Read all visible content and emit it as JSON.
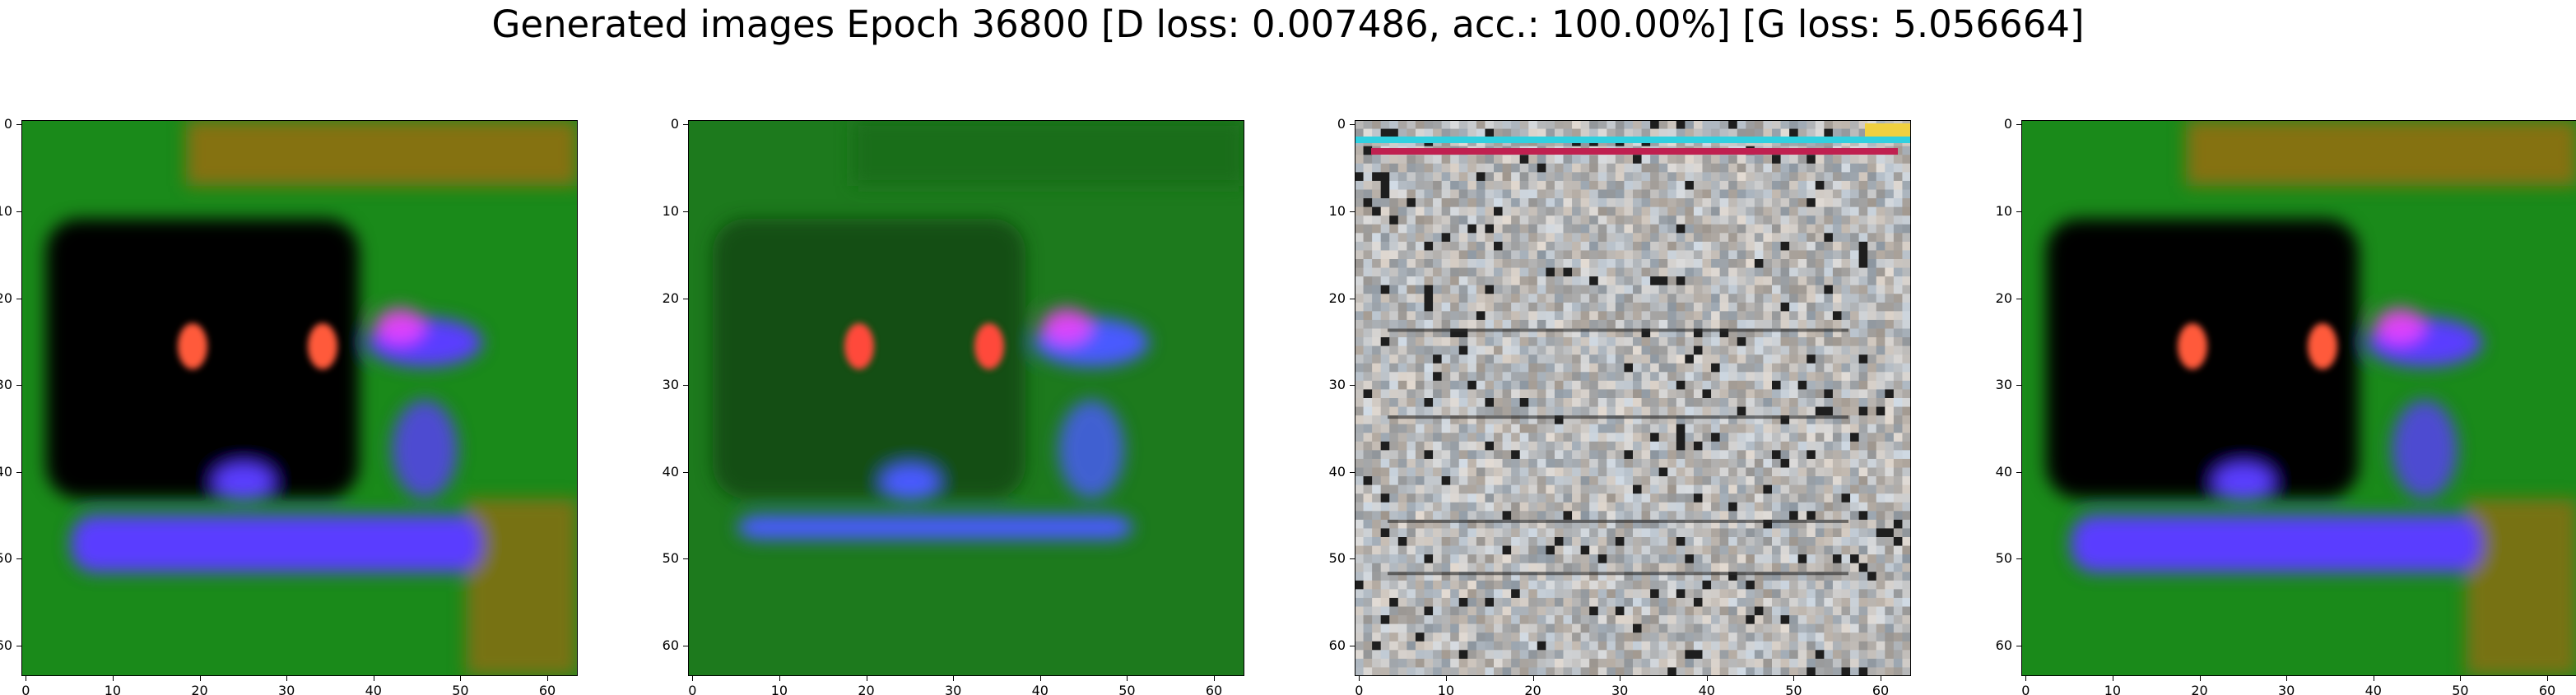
{
  "figure": {
    "title": "Generated images Epoch 36800 [D loss: 0.007486, acc.: 100.00%] [G loss: 5.056664]"
  },
  "axes": {
    "x_ticks": [
      0,
      10,
      20,
      30,
      40,
      50,
      60
    ],
    "y_ticks": [
      0,
      10,
      20,
      30,
      40,
      50,
      60
    ],
    "xlim": [
      -0.5,
      63.5
    ],
    "ylim": [
      63.5,
      -0.5
    ]
  },
  "panels": [
    {
      "name": "generated-image-1",
      "content": "dark-scene-with-two-red-eyes-blue-streaks-green-background",
      "colors": {
        "background": "#1a8a1a",
        "dark": "#050505",
        "eye": "#ff5a3a",
        "streak": "#5a3cff",
        "top": "#a06a10"
      }
    },
    {
      "name": "generated-image-2",
      "content": "green-blurred-scene-with-two-red-eyes-blue-streak",
      "colors": {
        "background": "#1d7a1d",
        "dark": "#0e3a0e",
        "eye": "#ff4a3a",
        "streak": "#4a5aff",
        "top": "#1a6a1a"
      }
    },
    {
      "name": "generated-image-3",
      "content": "grey-noisy-texture-with-colored-top-row",
      "colors": {
        "background": "#b8b4ae",
        "dark": "#2a2a2a",
        "eye": "#ff2040",
        "streak": "#30d0e0",
        "top": "#c02050"
      }
    },
    {
      "name": "generated-image-4",
      "content": "dark-scene-with-two-red-eyes-blue-streaks-green-background",
      "colors": {
        "background": "#1a8a1a",
        "dark": "#050505",
        "eye": "#ff5a3a",
        "streak": "#5a3cff",
        "top": "#a06a10"
      }
    }
  ]
}
